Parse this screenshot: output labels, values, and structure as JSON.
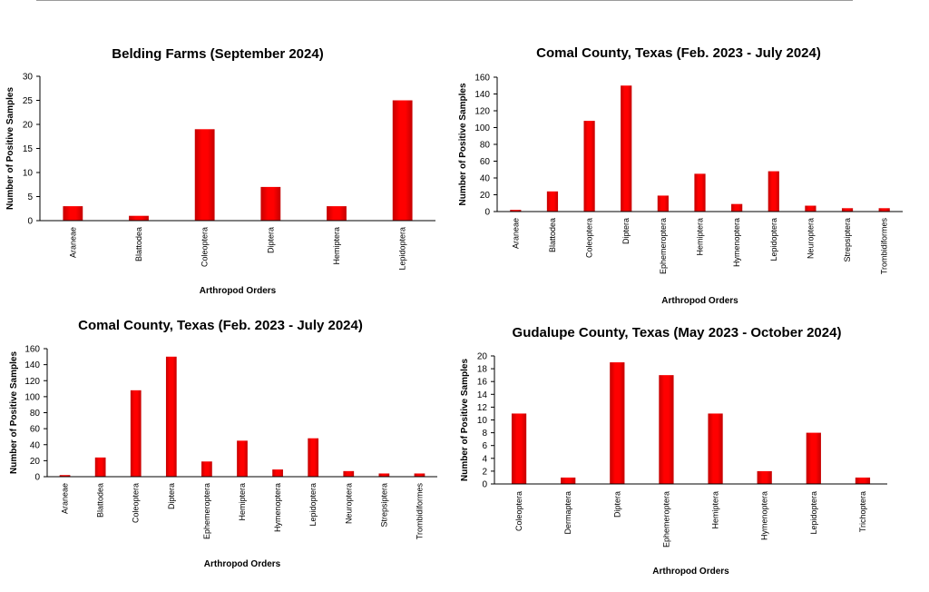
{
  "bar_color": "#ff0000",
  "bar_color_dark": "#c40000",
  "chart_data": [
    {
      "type": "bar",
      "title": "Belding Farms (September 2024)",
      "xlabel": "Arthropod Orders",
      "ylabel": "Number of Positive Samples",
      "ylim": [
        0,
        30
      ],
      "yticks": [
        0,
        5,
        10,
        15,
        20,
        25,
        30
      ],
      "categories": [
        "Araneae",
        "Blattodea",
        "Coleoptera",
        "Diptera",
        "Hemiptera",
        "Lepidoptera"
      ],
      "values": [
        3,
        1,
        19,
        7,
        3,
        25
      ],
      "grid": false
    },
    {
      "type": "bar",
      "title": "Comal County, Texas (Feb. 2023 - July 2024)",
      "xlabel": "Arthropod Orders",
      "ylabel": "Number of Positive Samples",
      "ylim": [
        0,
        160
      ],
      "yticks": [
        0,
        20,
        40,
        60,
        80,
        100,
        120,
        140,
        160
      ],
      "categories": [
        "Araneae",
        "Blattodea",
        "Coleoptera",
        "Diptera",
        "Ephemeroptera",
        "Hemiptera",
        "Hymenoptera",
        "Lepidoptera",
        "Neuroptera",
        "Strepsiptera",
        "Trombidiformes"
      ],
      "values": [
        2,
        24,
        108,
        150,
        19,
        45,
        9,
        48,
        7,
        4,
        4
      ],
      "grid": false
    },
    {
      "type": "bar",
      "title": "Comal County, Texas (Feb. 2023 - July 2024)",
      "xlabel": "Arthropod Orders",
      "ylabel": "Number of Positive Samples",
      "ylim": [
        0,
        160
      ],
      "yticks": [
        0,
        20,
        40,
        60,
        80,
        100,
        120,
        140,
        160
      ],
      "categories": [
        "Araneae",
        "Blattodea",
        "Coleoptera",
        "Diptera",
        "Ephemeroptera",
        "Hemiptera",
        "Hymenoptera",
        "Lepidoptera",
        "Neuroptera",
        "Strepsiptera",
        "Trombidiformes"
      ],
      "values": [
        2,
        24,
        108,
        150,
        19,
        45,
        9,
        48,
        7,
        4,
        4
      ],
      "grid": false
    },
    {
      "type": "bar",
      "title": "Gudalupe County, Texas (May 2023 - October 2024)",
      "xlabel": "Arthropod Orders",
      "ylabel": "Number of Positive Samples",
      "ylim": [
        0,
        20
      ],
      "yticks": [
        0,
        2,
        4,
        6,
        8,
        10,
        12,
        14,
        16,
        18,
        20
      ],
      "categories": [
        "Coleoptera",
        "Dermaptera",
        "Diptera",
        "Ephemeroptera",
        "Hemiptera",
        "Hymenoptera",
        "Lepidoptera",
        "Trichoptera"
      ],
      "values": [
        11,
        1,
        19,
        17,
        11,
        2,
        8,
        1
      ],
      "grid": false
    }
  ]
}
